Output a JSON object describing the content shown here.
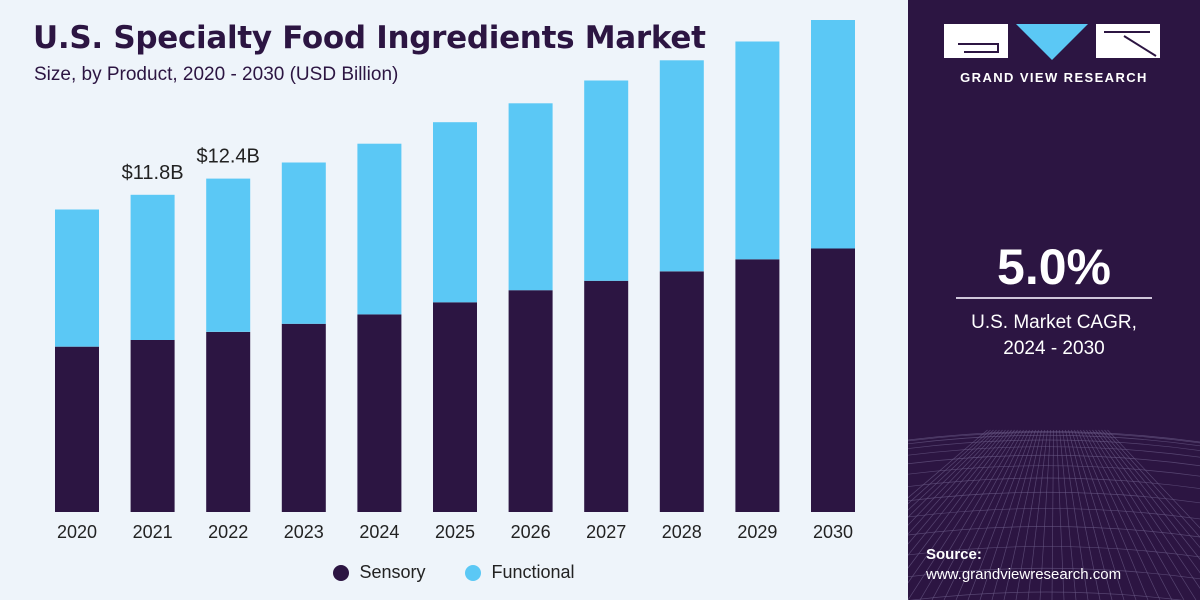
{
  "header": {
    "title": "U.S. Specialty Food Ingredients Market",
    "subtitle": "Size, by Product, 2020 - 2030 (USD Billion)"
  },
  "sidebar": {
    "brand": "GRAND VIEW RESEARCH",
    "cagr_value": "5.0%",
    "cagr_label_line1": "U.S. Market CAGR,",
    "cagr_label_line2": "2024 - 2030",
    "source_label": "Source:",
    "source_url": "www.grandviewresearch.com"
  },
  "colors": {
    "sensory": "#2c1542",
    "functional": "#5bc8f5",
    "background": "#eef4fa",
    "panel": "#2c1542"
  },
  "chart_data": {
    "type": "bar",
    "stacked": true,
    "categories": [
      "2020",
      "2021",
      "2022",
      "2023",
      "2024",
      "2025",
      "2026",
      "2027",
      "2028",
      "2029",
      "2030"
    ],
    "series": [
      {
        "name": "Sensory",
        "values": [
          6.15,
          6.4,
          6.7,
          7.0,
          7.35,
          7.8,
          8.25,
          8.6,
          8.95,
          9.4,
          9.8
        ]
      },
      {
        "name": "Functional",
        "values": [
          5.1,
          5.4,
          5.7,
          6.0,
          6.35,
          6.7,
          6.95,
          7.45,
          7.85,
          8.1,
          8.5
        ]
      }
    ],
    "annotations": [
      {
        "category": "2021",
        "text": "$11.8B"
      },
      {
        "category": "2022",
        "text": "$12.4B"
      }
    ],
    "ylim": [
      0,
      18.3
    ],
    "legend": "bottom-center",
    "grid": false
  }
}
